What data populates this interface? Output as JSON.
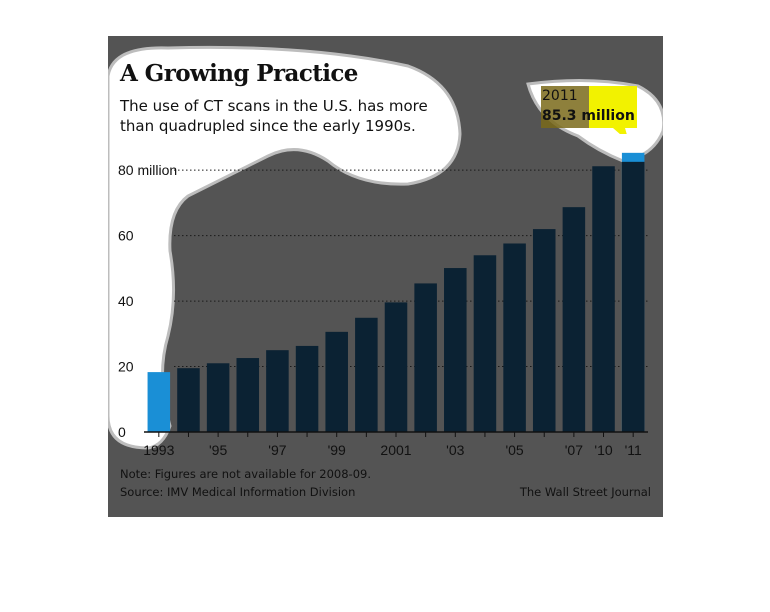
{
  "title": "A Growing Practice",
  "subtitle": "The use of CT scans in the U.S. has more than quadrupled since the early 1990s.",
  "annotation": {
    "year": "2011",
    "value": "85.3 million"
  },
  "footnote": "Note: Figures are not available for 2008-09.",
  "source": "Source: IMV Medical Information Division",
  "credit": "The Wall Street Journal",
  "colors": {
    "bar": "#0b2233",
    "highlight": "#1a8fd6",
    "panel": "#545454",
    "callout": "#f2f200",
    "callout_box": "#7a6a1a"
  },
  "chart_data": {
    "type": "bar",
    "categories": [
      "1993",
      "1994",
      "1995",
      "1996",
      "1997",
      "1998",
      "1999",
      "2000",
      "2001",
      "2002",
      "2003",
      "2004",
      "2005",
      "2006",
      "2007",
      "2010",
      "2011"
    ],
    "tick_labels": [
      "1993",
      "",
      "'95",
      "",
      "'97",
      "",
      "'99",
      "",
      "2001",
      "",
      "'03",
      "",
      "'05",
      "",
      "'07",
      "'10",
      "'11"
    ],
    "values": [
      18.3,
      19.5,
      21.0,
      22.6,
      25.0,
      26.3,
      30.6,
      34.9,
      39.6,
      45.4,
      50.1,
      54.0,
      57.6,
      62.0,
      68.7,
      81.2,
      85.3
    ],
    "highlight_index": [
      0,
      16
    ],
    "yticks": [
      0,
      20,
      40,
      60,
      80
    ],
    "ytick_labels": [
      "0",
      "20",
      "40",
      "60",
      "80 million"
    ],
    "ylim": [
      0,
      88
    ],
    "grid": true,
    "xlabel": "",
    "ylabel": ""
  }
}
